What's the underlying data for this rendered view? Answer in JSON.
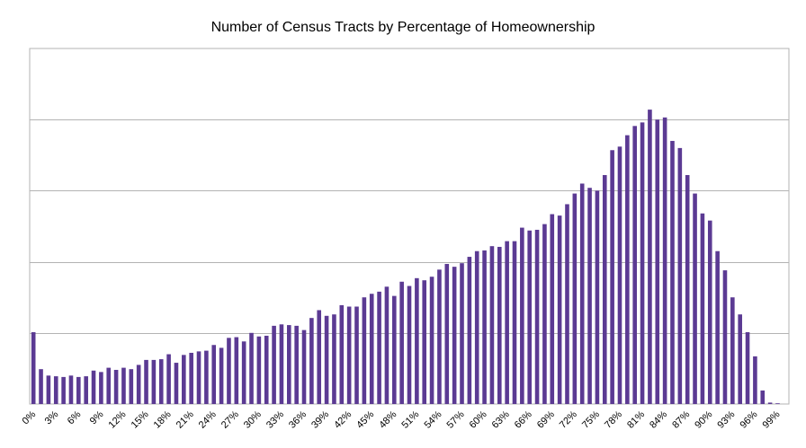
{
  "chart_data": {
    "type": "bar",
    "title": "Number of Census Tracts by Percentage of Homeownership",
    "xlabel": "",
    "ylabel": "",
    "ylim": [
      0,
      500
    ],
    "grid": true,
    "legend": "none",
    "bar_color": "#5b3a93",
    "categories": [
      "0%",
      "1%",
      "2%",
      "3%",
      "4%",
      "5%",
      "6%",
      "7%",
      "8%",
      "9%",
      "10%",
      "11%",
      "12%",
      "13%",
      "14%",
      "15%",
      "16%",
      "17%",
      "18%",
      "19%",
      "20%",
      "21%",
      "22%",
      "23%",
      "24%",
      "25%",
      "26%",
      "27%",
      "28%",
      "29%",
      "30%",
      "31%",
      "32%",
      "33%",
      "34%",
      "35%",
      "36%",
      "37%",
      "38%",
      "39%",
      "40%",
      "41%",
      "42%",
      "43%",
      "44%",
      "45%",
      "46%",
      "47%",
      "48%",
      "49%",
      "50%",
      "51%",
      "52%",
      "53%",
      "54%",
      "55%",
      "56%",
      "57%",
      "58%",
      "59%",
      "60%",
      "61%",
      "62%",
      "63%",
      "64%",
      "65%",
      "66%",
      "67%",
      "68%",
      "69%",
      "70%",
      "71%",
      "72%",
      "73%",
      "74%",
      "75%",
      "76%",
      "77%",
      "78%",
      "79%",
      "80%",
      "81%",
      "82%",
      "83%",
      "84%",
      "85%",
      "86%",
      "87%",
      "88%",
      "89%",
      "90%",
      "91%",
      "92%",
      "93%",
      "94%",
      "95%",
      "96%",
      "97%",
      "98%",
      "99%",
      "100%"
    ],
    "tick_labels": [
      "0%",
      "3%",
      "6%",
      "9%",
      "12%",
      "15%",
      "18%",
      "21%",
      "24%",
      "27%",
      "30%",
      "33%",
      "36%",
      "39%",
      "42%",
      "45%",
      "48%",
      "51%",
      "54%",
      "57%",
      "60%",
      "63%",
      "66%",
      "69%",
      "72%",
      "75%",
      "78%",
      "81%",
      "84%",
      "87%",
      "90%",
      "93%",
      "96%",
      "99%"
    ],
    "values": [
      101,
      49,
      40,
      39,
      38,
      40,
      38,
      39,
      47,
      45,
      51,
      48,
      51,
      49,
      55,
      62,
      62,
      63,
      70,
      58,
      69,
      72,
      74,
      75,
      83,
      79,
      93,
      94,
      88,
      100,
      95,
      96,
      110,
      112,
      111,
      110,
      104,
      121,
      132,
      124,
      126,
      139,
      137,
      137,
      150,
      155,
      158,
      165,
      152,
      172,
      166,
      177,
      174,
      179,
      189,
      197,
      193,
      198,
      207,
      215,
      216,
      222,
      221,
      229,
      229,
      248,
      244,
      245,
      253,
      267,
      265,
      281,
      296,
      310,
      304,
      300,
      322,
      357,
      362,
      378,
      391,
      396,
      414,
      400,
      403,
      370,
      360,
      322,
      296,
      268,
      258,
      215,
      188,
      150,
      126,
      101,
      67,
      19,
      2,
      1,
      0
    ]
  }
}
